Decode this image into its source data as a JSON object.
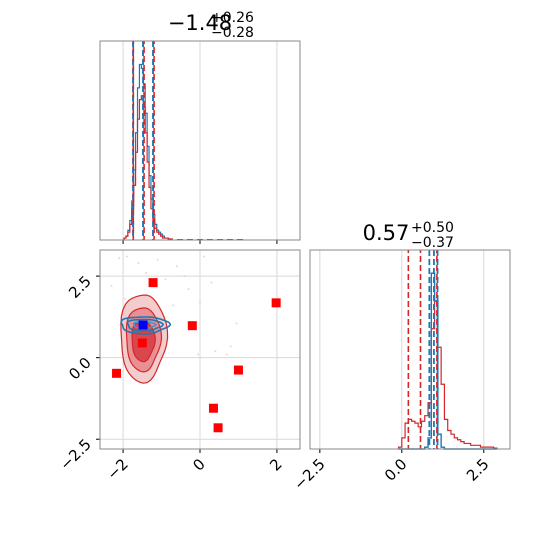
{
  "chart_data": {
    "type": "corner",
    "grid": true,
    "colors": {
      "red": "#d62728",
      "blue": "#1f77b4",
      "marker_red": "#ff0000",
      "marker_blue": "#0000ff",
      "grid": "#d8d8d8",
      "frame": "#888888"
    },
    "param_titles": [
      {
        "main": "−1.48",
        "sup": "+0.26",
        "sub": "−0.28"
      },
      {
        "main": "0.57",
        "sup": "+0.50",
        "sub": "−0.37"
      }
    ],
    "axes": {
      "p1_range": [
        -2.6,
        2.6
      ],
      "p2_range": [
        -2.8,
        3.3
      ],
      "p1_ticks": [
        -2,
        0,
        2
      ],
      "p1_tick_labels": [
        "−2",
        "0",
        "2"
      ],
      "p2_ticks": [
        -2.5,
        0.0,
        2.5
      ],
      "p2_tick_labels": [
        "−2.5",
        "0.0",
        "2.5"
      ]
    },
    "marginal_p1": {
      "red_quantiles": [
        -1.76,
        -1.48,
        -1.22
      ],
      "blue_quantiles": [
        -1.74,
        -1.48,
        -1.22
      ],
      "bins": [
        -1.95,
        -1.9,
        -1.85,
        -1.8,
        -1.75,
        -1.7,
        -1.65,
        -1.6,
        -1.55,
        -1.5,
        -1.45,
        -1.4,
        -1.35,
        -1.3,
        -1.25,
        -1.2,
        -1.15,
        -1.1,
        -1.05,
        -1.0,
        -0.95,
        -0.9,
        -0.85,
        -0.8,
        -0.75
      ],
      "red_counts": [
        0.01,
        0.02,
        0.04,
        0.08,
        0.16,
        0.28,
        0.45,
        0.62,
        0.72,
        0.74,
        0.68,
        0.55,
        0.4,
        0.27,
        0.16,
        0.1,
        0.06,
        0.04,
        0.03,
        0.02,
        0.01,
        0.01,
        0.01,
        0.005,
        0.005
      ],
      "blue_counts": [
        0.01,
        0.02,
        0.05,
        0.1,
        0.2,
        0.36,
        0.55,
        0.78,
        0.9,
        0.88,
        0.8,
        0.65,
        0.48,
        0.33,
        0.21,
        0.13,
        0.08,
        0.05,
        0.04,
        0.03,
        0.02,
        0.01,
        0.01,
        0.005,
        0.005
      ]
    },
    "marginal_p2": {
      "red_quantiles": [
        0.2,
        0.57,
        1.07
      ],
      "blue_quantiles": [
        0.84,
        0.98,
        1.09
      ],
      "bins": [
        -0.05,
        0.05,
        0.15,
        0.25,
        0.35,
        0.45,
        0.55,
        0.65,
        0.75,
        0.85,
        0.95,
        1.05,
        1.15,
        1.25,
        1.35,
        1.45,
        1.55,
        1.65,
        1.75,
        1.85,
        1.95,
        2.05,
        2.15,
        2.25,
        2.35,
        2.45,
        2.55,
        2.65,
        2.75,
        2.85
      ],
      "red_counts": [
        0.01,
        0.06,
        0.14,
        0.16,
        0.15,
        0.14,
        0.12,
        0.15,
        0.18,
        0.25,
        0.65,
        0.8,
        0.55,
        0.35,
        0.16,
        0.1,
        0.08,
        0.06,
        0.05,
        0.04,
        0.03,
        0.03,
        0.02,
        0.02,
        0.02,
        0.01,
        0.01,
        0.01,
        0.01,
        0.005
      ],
      "blue_counts": [
        0,
        0,
        0,
        0,
        0,
        0,
        0,
        0,
        0.01,
        0.06,
        0.95,
        0.8,
        0.08,
        0.01,
        0,
        0,
        0,
        0,
        0,
        0,
        0,
        0,
        0,
        0,
        0,
        0,
        0,
        0,
        0,
        0
      ]
    },
    "joint": {
      "red_contours": [
        {
          "cx": -1.48,
          "cy": 0.62,
          "rx": 0.6,
          "ry": 1.35
        },
        {
          "cx": -1.48,
          "cy": 0.58,
          "rx": 0.45,
          "ry": 0.98
        },
        {
          "cx": -1.48,
          "cy": 0.52,
          "rx": 0.3,
          "ry": 0.62
        }
      ],
      "blue_contours": [
        {
          "cx": -1.45,
          "cy": 1.0,
          "rx": 0.62,
          "ry": 0.26
        },
        {
          "cx": -1.45,
          "cy": 1.0,
          "rx": 0.45,
          "ry": 0.18
        },
        {
          "cx": -1.45,
          "cy": 1.0,
          "rx": 0.28,
          "ry": 0.1
        }
      ],
      "red_markers": [
        [
          -1.22,
          2.3
        ],
        [
          -0.2,
          0.98
        ],
        [
          1.98,
          1.68
        ],
        [
          -1.5,
          0.45
        ],
        [
          -2.17,
          -0.48
        ],
        [
          1.0,
          -0.38
        ],
        [
          0.35,
          -1.55
        ],
        [
          0.47,
          -2.15
        ]
      ],
      "blue_marker": [
        -1.48,
        1.0
      ],
      "scatter_points": [
        [
          -1.9,
          3.1
        ],
        [
          -1.6,
          2.9
        ],
        [
          -1.1,
          3.0
        ],
        [
          -0.6,
          2.8
        ],
        [
          -0.3,
          2.1
        ],
        [
          0.1,
          3.1
        ],
        [
          -2.3,
          2.2
        ],
        [
          -1.95,
          1.8
        ],
        [
          -0.7,
          1.6
        ],
        [
          0.0,
          1.7
        ],
        [
          -0.9,
          2.4
        ],
        [
          -1.4,
          2.6
        ],
        [
          0.4,
          0.2
        ],
        [
          0.7,
          0.1
        ],
        [
          0.8,
          0.35
        ],
        [
          -0.05,
          0.1
        ],
        [
          0.95,
          1.05
        ],
        [
          -2.1,
          3.05
        ],
        [
          -0.4,
          2.5
        ],
        [
          0.3,
          2.3
        ]
      ]
    }
  }
}
